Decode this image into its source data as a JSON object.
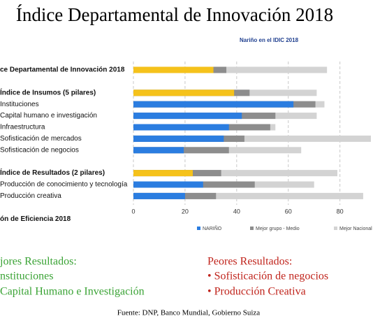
{
  "chart_data": {
    "type": "overlap_bar",
    "title": "Índice Departamental de Innovación 2018",
    "subtitle": "Nariño en el IDIC 2018",
    "categories": [
      "ce Departamental de Innovación 2018",
      null,
      "Índice de Insumos (5 pilares)",
      "Instituciones",
      "Capital humano e investigación",
      "Infraestructura",
      "Sofisticación de mercados",
      "Sofisticación de negocios",
      null,
      "Índice de Resultados (2 pilares)",
      "Producción de conocimiento y tecnología",
      "Producción creativa",
      null,
      "ón de Eficiencia 2018"
    ],
    "series": [
      {
        "name": "Mejor Nacional",
        "color": "#d3d3d3",
        "values": [
          75,
          null,
          71,
          74,
          71,
          55,
          92,
          65,
          null,
          79,
          70,
          89,
          null,
          null
        ]
      },
      {
        "name": "Mejor grupo - Medio",
        "color": "#8d8d8d",
        "values": [
          36,
          null,
          45,
          70.5,
          55,
          53,
          43,
          37,
          null,
          34,
          47,
          32,
          null,
          null
        ]
      },
      {
        "name": "NARIÑO",
        "color": "#2b7de0",
        "point_colors": [
          "#f5c21b",
          null,
          "#f5c21b",
          "#2b7de0",
          "#2b7de0",
          "#2b7de0",
          "#2b7de0",
          "#2b7de0",
          null,
          "#f5c21b",
          "#2b7de0",
          "#2b7de0",
          null,
          null
        ],
        "values": [
          31,
          null,
          39,
          62,
          42,
          37,
          35,
          19.5,
          null,
          23,
          27,
          20,
          null,
          null
        ]
      }
    ],
    "xlim": [
      0,
      92
    ],
    "xticks": [
      0,
      20,
      40,
      60,
      80
    ],
    "grid": true
  },
  "notes": {
    "best_title": "jores Resultados:",
    "best_items": [
      "nstituciones",
      "Capital Humano e Investigación"
    ],
    "worst_title": "Peores Resultados:",
    "worst_items": [
      "• Sofisticación de negocios",
      "• Producción Creativa"
    ],
    "source": "Fuente: DNP, Banco Mundial, Gobierno Suiza"
  }
}
